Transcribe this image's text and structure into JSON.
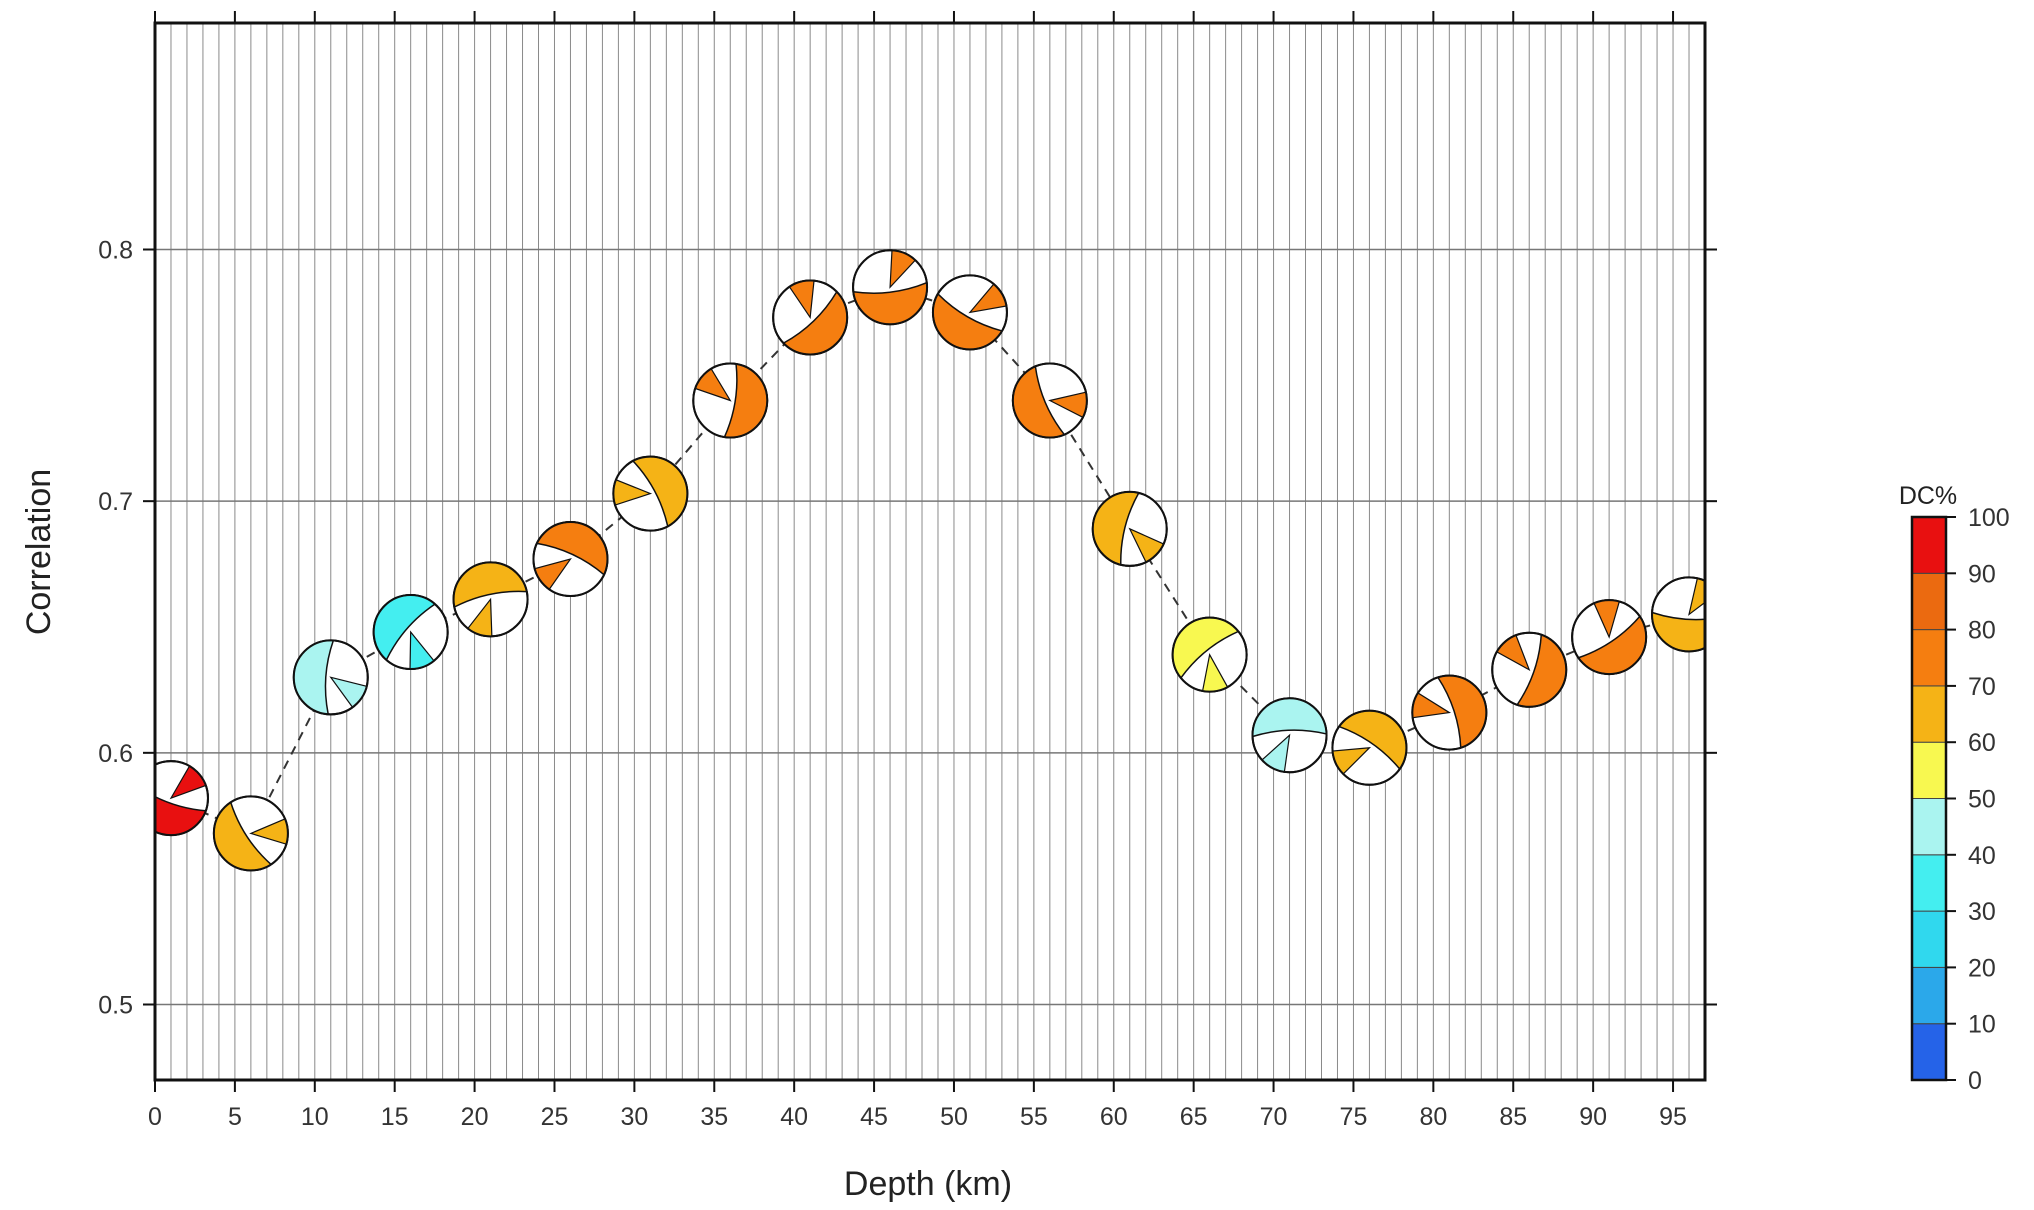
{
  "chart_data": {
    "type": "scatter",
    "title": "",
    "xlabel": "Depth (km)",
    "ylabel": "Correlation",
    "xlim": [
      0,
      97
    ],
    "ylim": [
      0.47,
      0.89
    ],
    "xticks": [
      "0",
      "5",
      "10",
      "15",
      "20",
      "25",
      "30",
      "35",
      "40",
      "45",
      "50",
      "55",
      "60",
      "65",
      "70",
      "75",
      "80",
      "85",
      "90",
      "95"
    ],
    "yticks": [
      "0.5",
      "0.6",
      "0.7",
      "0.8"
    ],
    "grid": true,
    "marker": "focal-mechanism beachball",
    "connector": "dashed",
    "points": [
      {
        "depth": 1,
        "correlation": 0.582,
        "dc": 95
      },
      {
        "depth": 6,
        "correlation": 0.568,
        "dc": 65
      },
      {
        "depth": 11,
        "correlation": 0.63,
        "dc": 45
      },
      {
        "depth": 16,
        "correlation": 0.648,
        "dc": 35
      },
      {
        "depth": 21,
        "correlation": 0.661,
        "dc": 65
      },
      {
        "depth": 26,
        "correlation": 0.677,
        "dc": 75
      },
      {
        "depth": 31,
        "correlation": 0.703,
        "dc": 65
      },
      {
        "depth": 36,
        "correlation": 0.74,
        "dc": 75
      },
      {
        "depth": 41,
        "correlation": 0.773,
        "dc": 75
      },
      {
        "depth": 46,
        "correlation": 0.785,
        "dc": 75
      },
      {
        "depth": 51,
        "correlation": 0.775,
        "dc": 75
      },
      {
        "depth": 56,
        "correlation": 0.74,
        "dc": 75
      },
      {
        "depth": 61,
        "correlation": 0.689,
        "dc": 65
      },
      {
        "depth": 66,
        "correlation": 0.639,
        "dc": 55
      },
      {
        "depth": 71,
        "correlation": 0.607,
        "dc": 45
      },
      {
        "depth": 76,
        "correlation": 0.602,
        "dc": 65
      },
      {
        "depth": 81,
        "correlation": 0.616,
        "dc": 75
      },
      {
        "depth": 86,
        "correlation": 0.633,
        "dc": 75
      },
      {
        "depth": 91,
        "correlation": 0.646,
        "dc": 75
      },
      {
        "depth": 96,
        "correlation": 0.655,
        "dc": 65
      }
    ],
    "colorbar": {
      "label": "DC%",
      "ticks": [
        "0",
        "10",
        "20",
        "30",
        "40",
        "50",
        "60",
        "70",
        "80",
        "90",
        "100"
      ],
      "colors": [
        "#2563e8",
        "#2ba8ea",
        "#30d8ee",
        "#44eef0",
        "#aaf4f0",
        "#f8f850",
        "#f5b316",
        "#f57e10",
        "#eb6a10",
        "#e81010"
      ]
    }
  }
}
